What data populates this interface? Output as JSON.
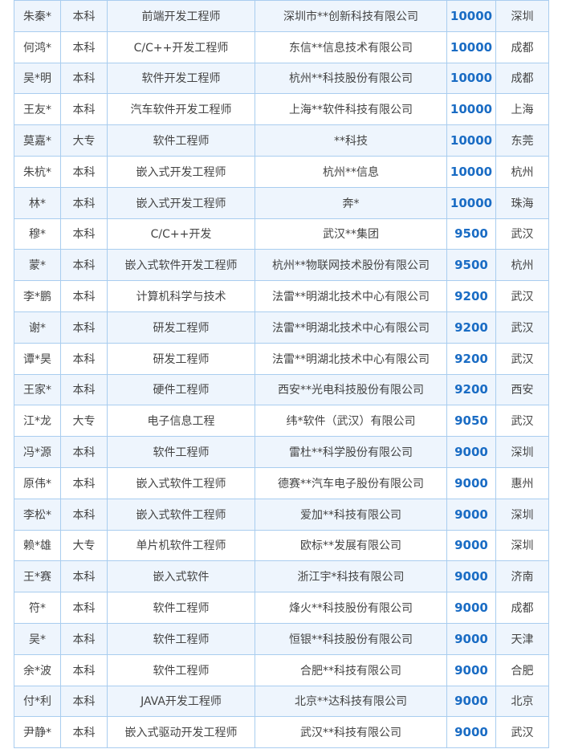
{
  "table": {
    "rows": [
      [
        "朱秦*",
        "本科",
        "前端开发工程师",
        "深圳市**创新科技有限公司",
        10000,
        "深圳"
      ],
      [
        "何鸿*",
        "本科",
        "C/C++开发工程师",
        "东信**信息技术有限公司",
        10000,
        "成都"
      ],
      [
        "吴*明",
        "本科",
        "软件开发工程师",
        "杭州**科技股份有限公司",
        10000,
        "成都"
      ],
      [
        "王友*",
        "本科",
        "汽车软件开发工程师",
        "上海**软件科技有限公司",
        10000,
        "上海"
      ],
      [
        "莫嘉*",
        "大专",
        "软件工程师",
        "**科技",
        10000,
        "东莞"
      ],
      [
        "朱杭*",
        "本科",
        "嵌入式开发工程师",
        "杭州**信息",
        10000,
        "杭州"
      ],
      [
        "林*",
        "本科",
        "嵌入式开发工程师",
        "奔*",
        10000,
        "珠海"
      ],
      [
        "穆*",
        "本科",
        "C/C++开发",
        "武汉**集团",
        9500,
        "武汉"
      ],
      [
        "蒙*",
        "本科",
        "嵌入式软件开发工程师",
        "杭州**物联网技术股份有限公司",
        9500,
        "杭州"
      ],
      [
        "李*鹏",
        "本科",
        "计算机科学与技术",
        "法雷**明湖北技术中心有限公司",
        9200,
        "武汉"
      ],
      [
        "谢*",
        "本科",
        "研发工程师",
        "法雷**明湖北技术中心有限公司",
        9200,
        "武汉"
      ],
      [
        "谭*昊",
        "本科",
        "研发工程师",
        "法雷**明湖北技术中心有限公司",
        9200,
        "武汉"
      ],
      [
        "王家*",
        "本科",
        "硬件工程师",
        "西安**光电科技股份有限公司",
        9200,
        "西安"
      ],
      [
        "江*龙",
        "大专",
        "电子信息工程",
        "纬*软件（武汉）有限公司",
        9050,
        "武汉"
      ],
      [
        "冯*源",
        "本科",
        "软件工程师",
        "雷杜**科学股份有限公司",
        9000,
        "深圳"
      ],
      [
        "原伟*",
        "本科",
        "嵌入式软件工程师",
        "德赛**汽车电子股份有限公司",
        9000,
        "惠州"
      ],
      [
        "李松*",
        "本科",
        "嵌入式软件工程师",
        "爱加**科技有限公司",
        9000,
        "深圳"
      ],
      [
        "赖*雄",
        "大专",
        "单片机软件工程师",
        "欧标**发展有限公司",
        9000,
        "深圳"
      ],
      [
        "王*赛",
        "本科",
        "嵌入式软件",
        "浙江宇*科技有限公司",
        9000,
        "济南"
      ],
      [
        "符*",
        "本科",
        "软件工程师",
        "烽火**科技股份有限公司",
        9000,
        "成都"
      ],
      [
        "吴*",
        "本科",
        "软件工程师",
        "恒银**科技股份有限公司",
        9000,
        "天津"
      ],
      [
        "余*波",
        "本科",
        "软件工程师",
        "合肥**科技有限公司",
        9000,
        "合肥"
      ],
      [
        "付*利",
        "本科",
        "JAVA开发工程师",
        "北京**达科技有限公司",
        9000,
        "北京"
      ],
      [
        "尹静*",
        "本科",
        "嵌入式驱动开发工程师",
        "武汉**科技有限公司",
        9000,
        "武汉"
      ]
    ]
  }
}
